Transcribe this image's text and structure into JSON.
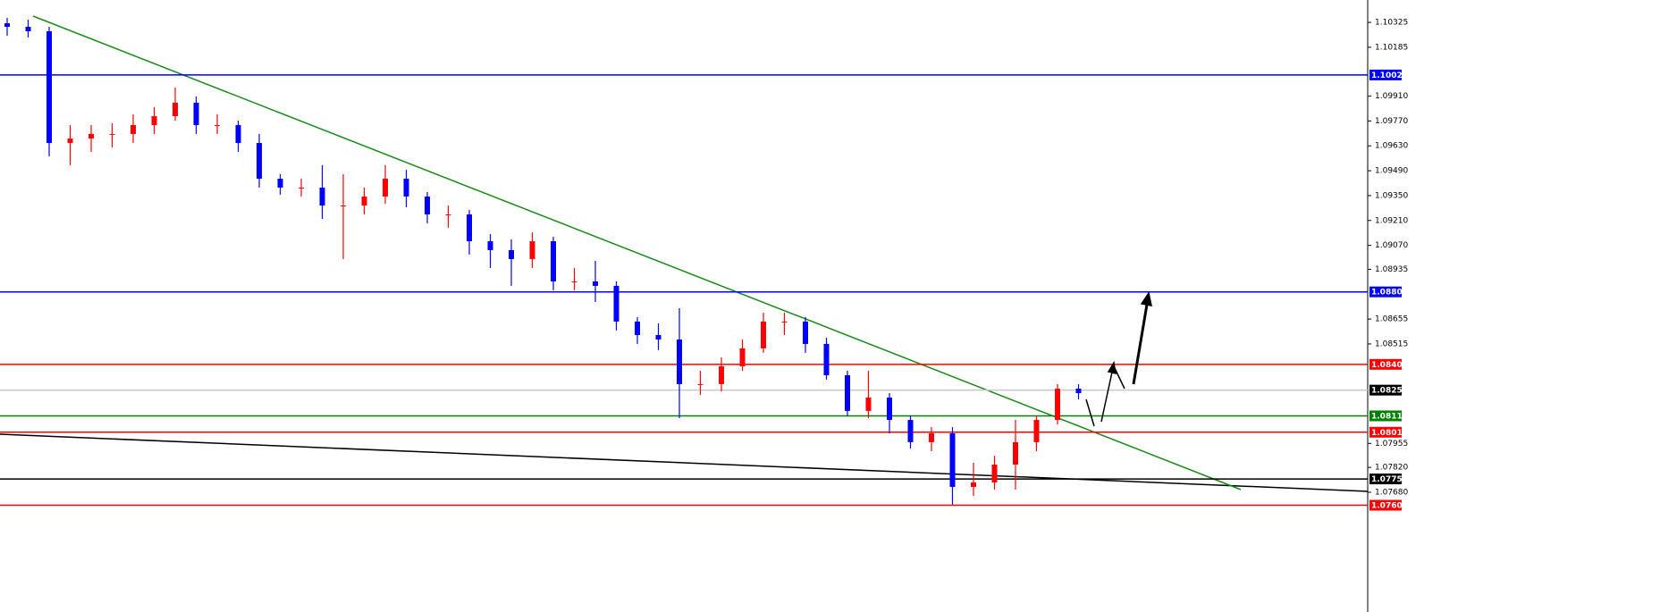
{
  "chart_data": {
    "type": "candlestick",
    "ylim": [
      1.07006,
      1.10451
    ],
    "yticks": [
      1.10325,
      1.10185,
      {
        "value": 1.0991,
        "label": "1.09910"
      },
      {
        "value": 1.0977,
        "label": "1.09770"
      },
      {
        "value": 1.0963,
        "label": "1.09630"
      },
      {
        "value": 1.0949,
        "label": "1.09490"
      },
      {
        "value": 1.0935,
        "label": "1.09350"
      },
      {
        "value": 1.0921,
        "label": "1.09210"
      },
      {
        "value": 1.0907,
        "label": "1.09070"
      },
      1.08935,
      1.08655,
      1.08515,
      1.07955,
      {
        "value": 1.0782,
        "label": "1.07820"
      },
      {
        "value": 1.0768,
        "label": "1.07680"
      }
    ],
    "up_color": "#ff0000",
    "down_color": "#0000ff",
    "candles": [
      [
        1.1032,
        1.1035,
        1.1025,
        1.103
      ],
      [
        1.103,
        1.1034,
        1.1024,
        1.10275
      ],
      [
        1.10275,
        1.103,
        1.09571,
        1.09646
      ],
      [
        1.09646,
        1.09747,
        1.09521,
        1.09671
      ],
      [
        1.09671,
        1.09747,
        1.09596,
        1.09697
      ],
      [
        1.09697,
        1.09757,
        1.09621,
        1.09697
      ],
      [
        1.09697,
        1.09807,
        1.09646,
        1.09747
      ],
      [
        1.09747,
        1.09848,
        1.09697,
        1.09797
      ],
      [
        1.09797,
        1.09958,
        1.09772,
        1.09873
      ],
      [
        1.09873,
        1.09908,
        1.09697,
        1.09747
      ],
      [
        1.09747,
        1.09807,
        1.09697,
        1.09747
      ],
      [
        1.09747,
        1.09772,
        1.09596,
        1.09646
      ],
      [
        1.09646,
        1.09697,
        1.09395,
        1.09445
      ],
      [
        1.09445,
        1.0947,
        1.09355,
        1.09395
      ],
      [
        1.09395,
        1.09445,
        1.09345,
        1.09395
      ],
      [
        1.09395,
        1.09521,
        1.09219,
        1.09294
      ],
      [
        1.09294,
        1.0947,
        1.08993,
        1.09294
      ],
      [
        1.09294,
        1.09395,
        1.09244,
        1.09345
      ],
      [
        1.09345,
        1.09521,
        1.09304,
        1.09445
      ],
      [
        1.09445,
        1.09495,
        1.09284,
        1.09345
      ],
      [
        1.09345,
        1.0937,
        1.09194,
        1.09244
      ],
      [
        1.09244,
        1.09294,
        1.09169,
        1.09244
      ],
      [
        1.09244,
        1.09269,
        1.09018,
        1.09093
      ],
      [
        1.09093,
        1.09133,
        1.08942,
        1.09043
      ],
      [
        1.09043,
        1.09103,
        1.08842,
        1.08993
      ],
      [
        1.08993,
        1.09143,
        1.08942,
        1.09093
      ],
      [
        1.09093,
        1.09118,
        1.08817,
        1.08867
      ],
      [
        1.08867,
        1.08942,
        1.08817,
        1.08867
      ],
      [
        1.08867,
        1.08983,
        1.08751,
        1.08842
      ],
      [
        1.08842,
        1.08867,
        1.0859,
        1.08641
      ],
      [
        1.08641,
        1.08666,
        1.08515,
        1.08565
      ],
      [
        1.08565,
        1.08631,
        1.0848,
        1.0854
      ],
      [
        1.0854,
        1.08716,
        1.08097,
        1.08289
      ],
      [
        1.08289,
        1.08364,
        1.08228,
        1.08289
      ],
      [
        1.08289,
        1.08439,
        1.08248,
        1.08389
      ],
      [
        1.08389,
        1.0854,
        1.08364,
        1.0849
      ],
      [
        1.0849,
        1.08691,
        1.08465,
        1.08641
      ],
      [
        1.08641,
        1.08691,
        1.08565,
        1.08641
      ],
      [
        1.08641,
        1.08666,
        1.08465,
        1.08515
      ],
      [
        1.08515,
        1.0855,
        1.08314,
        1.08339
      ],
      [
        1.08339,
        1.08364,
        1.08107,
        1.08138
      ],
      [
        1.08138,
        1.08364,
        1.08097,
        1.08213
      ],
      [
        1.08213,
        1.08238,
        1.08012,
        1.08087
      ],
      [
        1.08087,
        1.08113,
        1.07926,
        1.07962
      ],
      [
        1.07962,
        1.08047,
        1.07911,
        1.08012
      ],
      [
        1.08012,
        1.08047,
        1.0761,
        1.0771
      ],
      [
        1.0771,
        1.07846,
        1.0766,
        1.07735
      ],
      [
        1.07735,
        1.07886,
        1.07695,
        1.07836
      ],
      [
        1.07836,
        1.08087,
        1.07695,
        1.07962
      ],
      [
        1.07962,
        1.08113,
        1.07911,
        1.08087
      ],
      [
        1.08087,
        1.08289,
        1.08062,
        1.08263
      ],
      [
        1.08263,
        1.08289,
        1.08203,
        1.08238
      ]
    ],
    "levels": [
      {
        "value": 1.10029,
        "color": "#0000ff",
        "label_color": "#0000ff"
      },
      {
        "value": 1.08808,
        "color": "#0000ff",
        "label_color": "#0000ff"
      },
      {
        "value": 1.084,
        "label": "1.08400",
        "color": "#ff0000",
        "label_color": "#ff0000"
      },
      {
        "value": 1.08255,
        "color": "#c8c8c8",
        "label_color": "#000000"
      },
      {
        "value": 1.0811,
        "label": "1.08110",
        "color": "#008000",
        "label_color": "#008000"
      },
      {
        "value": 1.08018,
        "color": "#ff0000",
        "label_color": "#ff0000"
      },
      {
        "value": 1.07755,
        "color": "#000000",
        "label_color": "#000000"
      },
      {
        "value": 1.07607,
        "color": "#ff0000",
        "label_color": "#ff0000"
      }
    ]
  }
}
